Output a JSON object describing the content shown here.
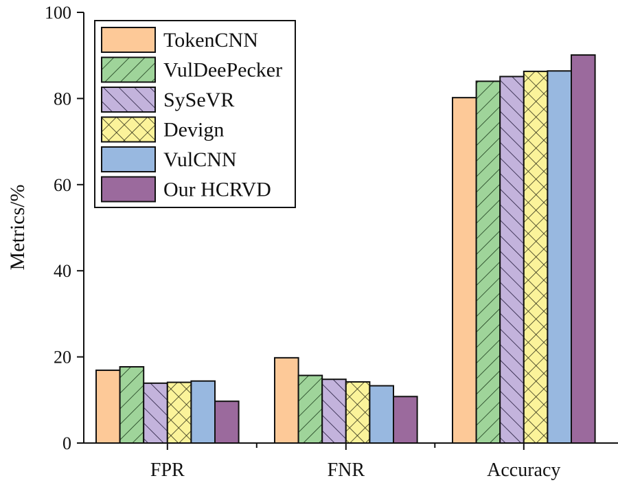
{
  "chart_data": {
    "type": "bar",
    "title": "",
    "xlabel": "",
    "ylabel": "Metrics/%",
    "ylim": [
      0,
      100
    ],
    "yticks": [
      "0",
      "20",
      "40",
      "60",
      "80",
      "100"
    ],
    "categories": [
      "FPR",
      "FNR",
      "Accuracy"
    ],
    "grid": false,
    "legend_position": "top-left",
    "series": [
      {
        "name": "TokenCNN",
        "values": [
          16.9,
          19.8,
          80.2
        ],
        "color": "#fdc998",
        "pattern": "none"
      },
      {
        "name": "VulDeePecker",
        "values": [
          17.7,
          15.7,
          84.0
        ],
        "color": "#9fd49a",
        "pattern": "forward-diagonal"
      },
      {
        "name": "SySeVR",
        "values": [
          13.9,
          14.8,
          85.1
        ],
        "color": "#c3b3dc",
        "pattern": "backward-diagonal"
      },
      {
        "name": "Devign",
        "values": [
          14.1,
          14.2,
          86.3
        ],
        "color": "#fbf39a",
        "pattern": "crosshatch"
      },
      {
        "name": "VulCNN",
        "values": [
          14.4,
          13.3,
          86.4
        ],
        "color": "#98b8e0",
        "pattern": "none"
      },
      {
        "name": "Our HCRVD",
        "values": [
          9.7,
          10.8,
          90.1
        ],
        "color": "#9b6a9d",
        "pattern": "none"
      }
    ]
  }
}
